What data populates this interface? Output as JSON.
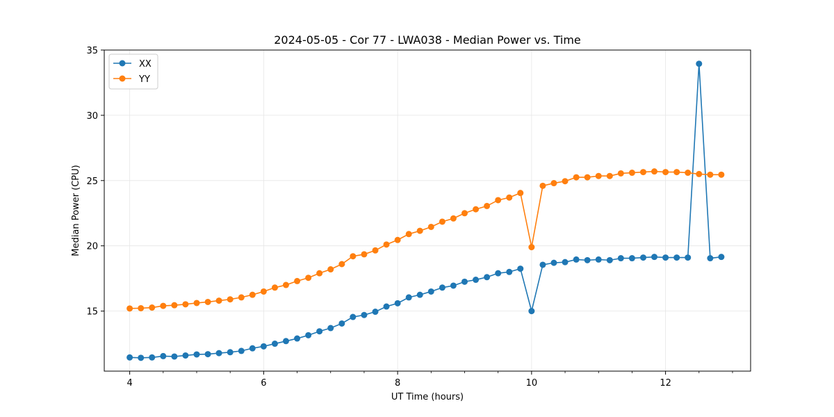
{
  "chart_data": {
    "type": "line",
    "title": "2024-05-05 - Cor 77 - LWA038 - Median Power vs. Time",
    "xlabel": "UT Time (hours)",
    "ylabel": "Median Power (CPU)",
    "xlim": [
      3.62,
      13.27
    ],
    "ylim": [
      10.4,
      35.0
    ],
    "xticks": [
      4,
      6,
      8,
      10,
      12
    ],
    "yticks": [
      15,
      20,
      25,
      30,
      35
    ],
    "grid": true,
    "legend_position": "top-left",
    "x": [
      4.0,
      4.167,
      4.333,
      4.5,
      4.667,
      4.833,
      5.0,
      5.167,
      5.333,
      5.5,
      5.667,
      5.833,
      6.0,
      6.167,
      6.333,
      6.5,
      6.667,
      6.833,
      7.0,
      7.167,
      7.333,
      7.5,
      7.667,
      7.833,
      8.0,
      8.167,
      8.333,
      8.5,
      8.667,
      8.833,
      9.0,
      9.167,
      9.333,
      9.5,
      9.667,
      9.833,
      10.0,
      10.167,
      10.333,
      10.5,
      10.667,
      10.833,
      11.0,
      11.167,
      11.333,
      11.5,
      11.667,
      11.833,
      12.0,
      12.167,
      12.333,
      12.5,
      12.667,
      12.833
    ],
    "series": [
      {
        "name": "XX",
        "color": "#1f77b4",
        "values": [
          11.45,
          11.42,
          11.45,
          11.55,
          11.52,
          11.6,
          11.68,
          11.7,
          11.78,
          11.85,
          11.95,
          12.15,
          12.3,
          12.5,
          12.7,
          12.9,
          13.15,
          13.45,
          13.7,
          14.05,
          14.55,
          14.7,
          14.95,
          15.35,
          15.6,
          16.05,
          16.25,
          16.5,
          16.8,
          16.95,
          17.25,
          17.4,
          17.6,
          17.9,
          18.0,
          18.25,
          15.0,
          18.55,
          18.7,
          18.75,
          18.95,
          18.9,
          18.95,
          18.9,
          19.05,
          19.05,
          19.1,
          19.15,
          19.1,
          19.1,
          19.1,
          33.95,
          19.05,
          19.15
        ]
      },
      {
        "name": "YY",
        "color": "#ff7f0e",
        "values": [
          15.2,
          15.22,
          15.27,
          15.4,
          15.45,
          15.52,
          15.62,
          15.7,
          15.8,
          15.9,
          16.05,
          16.25,
          16.5,
          16.8,
          17.0,
          17.3,
          17.55,
          17.9,
          18.2,
          18.6,
          19.2,
          19.35,
          19.65,
          20.1,
          20.45,
          20.9,
          21.15,
          21.45,
          21.85,
          22.1,
          22.5,
          22.8,
          23.05,
          23.5,
          23.7,
          24.05,
          19.9,
          24.6,
          24.8,
          24.95,
          25.25,
          25.25,
          25.35,
          25.35,
          25.55,
          25.6,
          25.65,
          25.7,
          25.65,
          25.65,
          25.6,
          25.5,
          25.45,
          25.45
        ]
      }
    ]
  }
}
